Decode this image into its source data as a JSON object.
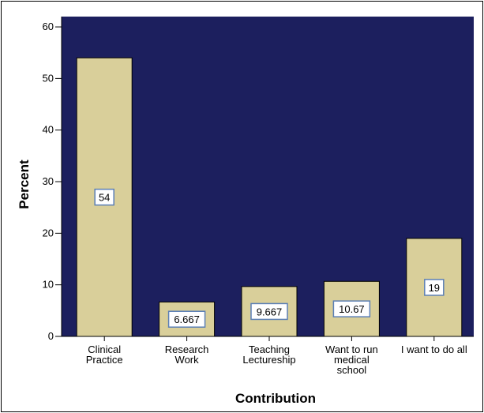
{
  "chart_data": {
    "type": "bar",
    "categories": [
      [
        "Clinical",
        "Practice"
      ],
      [
        "Research",
        "Work"
      ],
      [
        "Teaching",
        "Lectureship"
      ],
      [
        "Want to run",
        "medical",
        "school"
      ],
      [
        "I want to do all"
      ]
    ],
    "values": [
      54,
      6.667,
      9.667,
      10.67,
      19
    ],
    "data_labels": [
      "54",
      "6.667",
      "9.667",
      "10.67",
      "19"
    ],
    "title": "",
    "xlabel": "Contribution",
    "ylabel": "Percent",
    "ylim": [
      0,
      62
    ],
    "yticks": [
      0,
      10,
      20,
      30,
      40,
      50,
      60
    ],
    "grid": false,
    "colors": {
      "plot_background": "#1c1f5e",
      "bar_fill": "#d9cf9a",
      "bar_stroke": "#000000",
      "label_box_fill": "#ffffff",
      "label_box_stroke": "#5b7fb5"
    }
  }
}
